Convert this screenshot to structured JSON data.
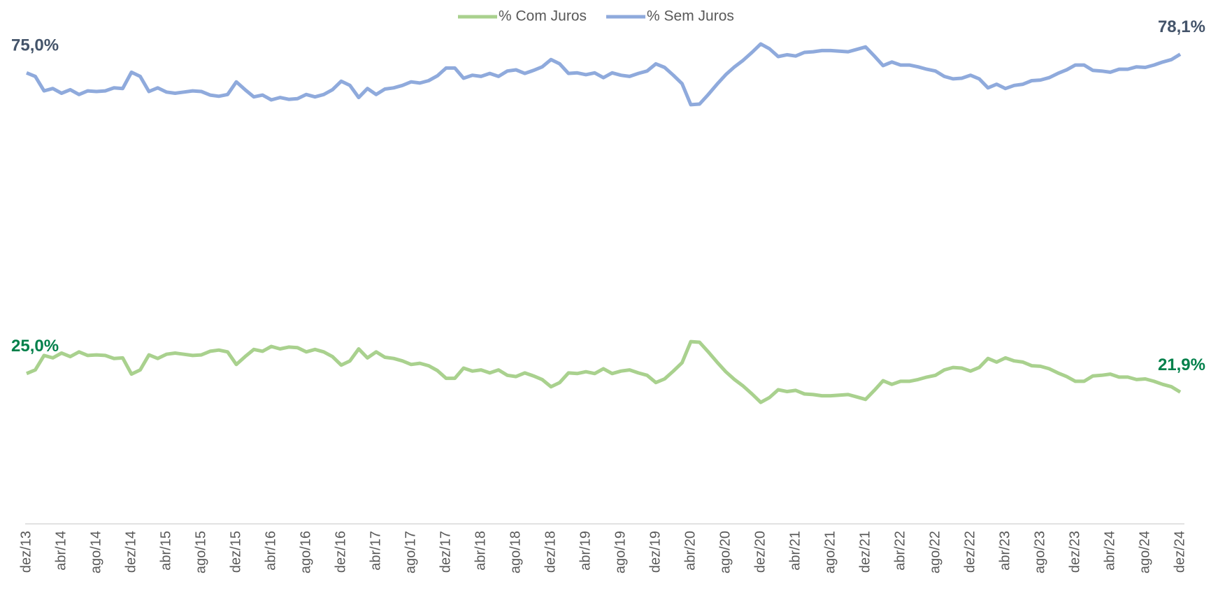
{
  "chart_data": {
    "type": "line",
    "categories": [
      "dez/13",
      null,
      null,
      null,
      "abr/14",
      null,
      null,
      null,
      "ago/14",
      null,
      null,
      null,
      "dez/14",
      null,
      null,
      null,
      "abr/15",
      null,
      null,
      null,
      "ago/15",
      null,
      null,
      null,
      "dez/15",
      null,
      null,
      null,
      "abr/16",
      null,
      null,
      null,
      "ago/16",
      null,
      null,
      null,
      "dez/16",
      null,
      null,
      null,
      "abr/17",
      null,
      null,
      null,
      "ago/17",
      null,
      null,
      null,
      "dez/17",
      null,
      null,
      null,
      "abr/18",
      null,
      null,
      null,
      "ago/18",
      null,
      null,
      null,
      "dez/18",
      null,
      null,
      null,
      "abr/19",
      null,
      null,
      null,
      "ago/19",
      null,
      null,
      null,
      "dez/19",
      null,
      null,
      null,
      "abr/20",
      null,
      null,
      null,
      "ago/20",
      null,
      null,
      null,
      "dez/20",
      null,
      null,
      null,
      "abr/21",
      null,
      null,
      null,
      "ago/21",
      null,
      null,
      null,
      "dez/21",
      null,
      null,
      null,
      "abr/22",
      null,
      null,
      null,
      "ago/22",
      null,
      null,
      null,
      "dez/22",
      null,
      null,
      null,
      "abr/23",
      null,
      null,
      null,
      "ago/23",
      null,
      null,
      null,
      "dez/23",
      null,
      null,
      null,
      "abr/24",
      null,
      null,
      null,
      "ago/24",
      null,
      null,
      null,
      "dez/24"
    ],
    "series": [
      {
        "name": "% Com Juros",
        "color": "#a9d18e",
        "label_color": "#00804a",
        "values": [
          25.0,
          25.6,
          28.0,
          27.6,
          28.4,
          27.8,
          28.6,
          28.0,
          28.1,
          28.0,
          27.5,
          27.6,
          24.9,
          25.6,
          28.1,
          27.5,
          28.2,
          28.4,
          28.2,
          28.0,
          28.1,
          28.7,
          28.9,
          28.6,
          26.5,
          27.8,
          29.0,
          28.7,
          29.5,
          29.1,
          29.4,
          29.3,
          28.6,
          29.0,
          28.6,
          27.8,
          26.4,
          27.1,
          29.1,
          27.6,
          28.6,
          27.7,
          27.5,
          27.1,
          26.5,
          26.7,
          26.3,
          25.5,
          24.2,
          24.2,
          25.9,
          25.4,
          25.6,
          25.1,
          25.6,
          24.7,
          24.5,
          25.1,
          24.6,
          24.0,
          22.8,
          23.5,
          25.1,
          25.0,
          25.3,
          25.0,
          25.8,
          25.0,
          25.4,
          25.6,
          25.1,
          24.7,
          23.5,
          24.1,
          25.4,
          26.8,
          30.3,
          30.2,
          28.6,
          26.9,
          25.3,
          24.0,
          22.9,
          21.6,
          20.2,
          21.0,
          22.3,
          22.0,
          22.2,
          21.6,
          21.5,
          21.3,
          21.3,
          21.4,
          21.5,
          21.1,
          20.7,
          22.2,
          23.8,
          23.2,
          23.7,
          23.7,
          24.0,
          24.4,
          24.7,
          25.6,
          26.0,
          25.9,
          25.4,
          26.0,
          27.5,
          26.9,
          27.6,
          27.1,
          26.9,
          26.3,
          26.2,
          25.8,
          25.1,
          24.5,
          23.7,
          23.7,
          24.6,
          24.7,
          24.9,
          24.4,
          24.4,
          24.0,
          24.1,
          23.7,
          23.2,
          22.8,
          21.9
        ],
        "value_labels": [
          "25,0%",
          null,
          null,
          null,
          null,
          null,
          null,
          null,
          null,
          null,
          null,
          null,
          null,
          null,
          null,
          null,
          null,
          null,
          null,
          null,
          null,
          null,
          null,
          null,
          null,
          null,
          null,
          null,
          null,
          null,
          null,
          null,
          null,
          null,
          null,
          null,
          null,
          null,
          null,
          null,
          null,
          null,
          null,
          null,
          null,
          null,
          null,
          null,
          null,
          null,
          null,
          null,
          null,
          null,
          null,
          null,
          null,
          null,
          null,
          null,
          null,
          null,
          null,
          null,
          null,
          null,
          null,
          null,
          null,
          null,
          null,
          null,
          null,
          null,
          null,
          null,
          null,
          null,
          null,
          null,
          null,
          null,
          null,
          null,
          null,
          null,
          null,
          null,
          null,
          null,
          null,
          null,
          null,
          null,
          null,
          null,
          null,
          null,
          null,
          null,
          null,
          null,
          null,
          null,
          null,
          null,
          null,
          null,
          null,
          null,
          null,
          null,
          null,
          null,
          null,
          null,
          null,
          null,
          null,
          null,
          null,
          null,
          null,
          null,
          null,
          null,
          null,
          null,
          null,
          null,
          null,
          null,
          "21,9%"
        ]
      },
      {
        "name": "% Sem Juros",
        "color": "#8faadc",
        "label_color": "#44546a",
        "values": [
          75.0,
          74.4,
          72.0,
          72.4,
          71.6,
          72.2,
          71.4,
          72.0,
          71.9,
          72.0,
          72.5,
          72.4,
          75.1,
          74.4,
          71.9,
          72.5,
          71.8,
          71.6,
          71.8,
          72.0,
          71.9,
          71.3,
          71.1,
          71.4,
          73.5,
          72.2,
          71.0,
          71.3,
          70.5,
          70.9,
          70.6,
          70.7,
          71.4,
          71.0,
          71.4,
          72.2,
          73.6,
          72.9,
          70.9,
          72.4,
          71.4,
          72.3,
          72.5,
          72.9,
          73.5,
          73.3,
          73.7,
          74.5,
          75.8,
          75.8,
          74.1,
          74.6,
          74.4,
          74.9,
          74.4,
          75.3,
          75.5,
          74.9,
          75.4,
          76.0,
          77.2,
          76.5,
          74.9,
          75.0,
          74.7,
          75.0,
          74.2,
          75.0,
          74.6,
          74.4,
          74.9,
          75.3,
          76.5,
          75.9,
          74.6,
          73.2,
          69.7,
          69.8,
          71.4,
          73.1,
          74.7,
          76.0,
          77.1,
          78.4,
          79.8,
          79.0,
          77.7,
          78.0,
          77.8,
          78.4,
          78.5,
          78.7,
          78.7,
          78.6,
          78.5,
          78.9,
          79.3,
          77.8,
          76.2,
          76.8,
          76.3,
          76.3,
          76.0,
          75.6,
          75.3,
          74.4,
          74.0,
          74.1,
          74.6,
          74.0,
          72.5,
          73.1,
          72.4,
          72.9,
          73.1,
          73.7,
          73.8,
          74.2,
          74.9,
          75.5,
          76.3,
          76.3,
          75.4,
          75.3,
          75.1,
          75.6,
          75.6,
          76.0,
          75.9,
          76.3,
          76.8,
          77.2,
          78.1
        ],
        "value_labels": [
          "75,0%",
          null,
          null,
          null,
          null,
          null,
          null,
          null,
          null,
          null,
          null,
          null,
          null,
          null,
          null,
          null,
          null,
          null,
          null,
          null,
          null,
          null,
          null,
          null,
          null,
          null,
          null,
          null,
          null,
          null,
          null,
          null,
          null,
          null,
          null,
          null,
          null,
          null,
          null,
          null,
          null,
          null,
          null,
          null,
          null,
          null,
          null,
          null,
          null,
          null,
          null,
          null,
          null,
          null,
          null,
          null,
          null,
          null,
          null,
          null,
          null,
          null,
          null,
          null,
          null,
          null,
          null,
          null,
          null,
          null,
          null,
          null,
          null,
          null,
          null,
          null,
          null,
          null,
          null,
          null,
          null,
          null,
          null,
          null,
          null,
          null,
          null,
          null,
          null,
          null,
          null,
          null,
          null,
          null,
          null,
          null,
          null,
          null,
          null,
          null,
          null,
          null,
          null,
          null,
          null,
          null,
          null,
          null,
          null,
          null,
          null,
          null,
          null,
          null,
          null,
          null,
          null,
          null,
          null,
          null,
          null,
          null,
          null,
          null,
          null,
          null,
          null,
          null,
          null,
          null,
          null,
          null,
          "78,1%"
        ]
      }
    ],
    "ylim": [
      0,
      82
    ],
    "legend": "top"
  }
}
